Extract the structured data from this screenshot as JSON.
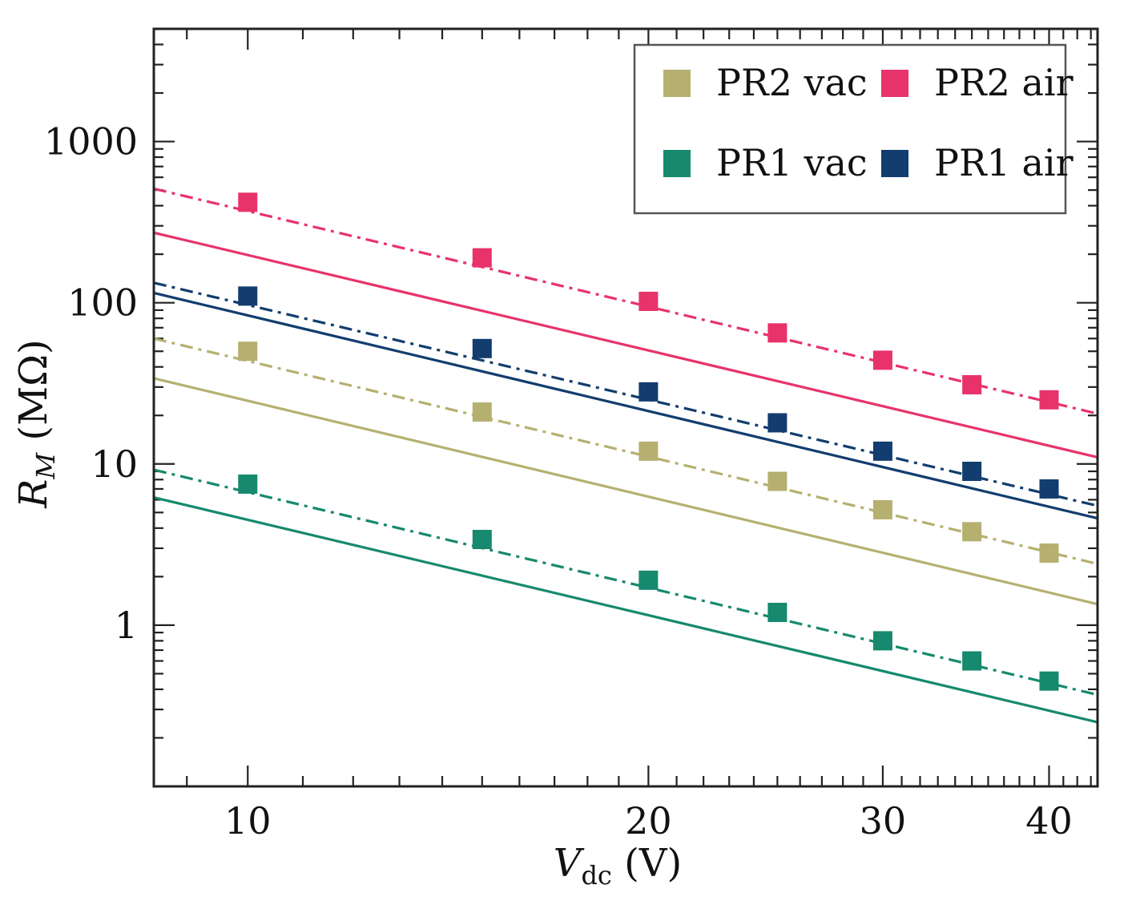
{
  "chart_data": {
    "type": "scatter",
    "xscale": "log",
    "yscale": "log",
    "xlim": [
      8.5,
      43.5
    ],
    "ylim": [
      0.1,
      5000
    ],
    "x_ticks": [
      10,
      20,
      30,
      40
    ],
    "x_tick_labels": [
      "10",
      "20",
      "30",
      "40"
    ],
    "y_ticks": [
      1,
      10,
      100,
      1000
    ],
    "y_tick_labels": [
      "1",
      "10",
      "100",
      "1000"
    ],
    "xlabel": {
      "main": "V",
      "sub": "dc",
      "unit": " (V)"
    },
    "ylabel": {
      "main": "R",
      "sub": "M",
      "unit": " (MΩ)"
    },
    "legend_position": "top-right",
    "series": [
      {
        "key": "pr2-air",
        "name": "PR2 air",
        "color": "#e8336a",
        "x": [
          10,
          15,
          20,
          25,
          30,
          35,
          40
        ],
        "values": [
          420,
          190,
          102,
          65,
          44,
          31,
          25
        ],
        "dashed_fit": [
          [
            8.5,
            510
          ],
          [
            43.5,
            20.5
          ]
        ],
        "solid_fit": [
          [
            8.5,
            272
          ],
          [
            43.5,
            11
          ]
        ]
      },
      {
        "key": "pr1-air",
        "name": "PR1 air",
        "color": "#123d6e",
        "x": [
          10,
          15,
          20,
          25,
          30,
          35,
          40
        ],
        "values": [
          110,
          52,
          28,
          18,
          12,
          9,
          7
        ],
        "dashed_fit": [
          [
            8.5,
            133
          ],
          [
            43.5,
            5.5
          ]
        ],
        "solid_fit": [
          [
            8.5,
            115
          ],
          [
            43.5,
            4.6
          ]
        ]
      },
      {
        "key": "pr2-vac",
        "name": "PR2 vac",
        "color": "#b5b070",
        "x": [
          10,
          15,
          20,
          25,
          30,
          35,
          40
        ],
        "values": [
          50,
          21,
          12,
          7.8,
          5.2,
          3.8,
          2.8
        ],
        "dashed_fit": [
          [
            8.5,
            60
          ],
          [
            43.5,
            2.4
          ]
        ],
        "solid_fit": [
          [
            8.5,
            34
          ],
          [
            43.5,
            1.35
          ]
        ]
      },
      {
        "key": "pr1-vac",
        "name": "PR1 vac",
        "color": "#16896e",
        "x": [
          10,
          15,
          20,
          25,
          30,
          35,
          40
        ],
        "values": [
          7.5,
          3.4,
          1.9,
          1.2,
          0.8,
          0.6,
          0.45
        ],
        "dashed_fit": [
          [
            8.5,
            9.2
          ],
          [
            43.5,
            0.37
          ]
        ],
        "solid_fit": [
          [
            8.5,
            6.2
          ],
          [
            43.5,
            0.25
          ]
        ]
      }
    ],
    "legend_order": [
      "pr2-vac",
      "pr2-air",
      "pr1-vac",
      "pr1-air"
    ]
  }
}
